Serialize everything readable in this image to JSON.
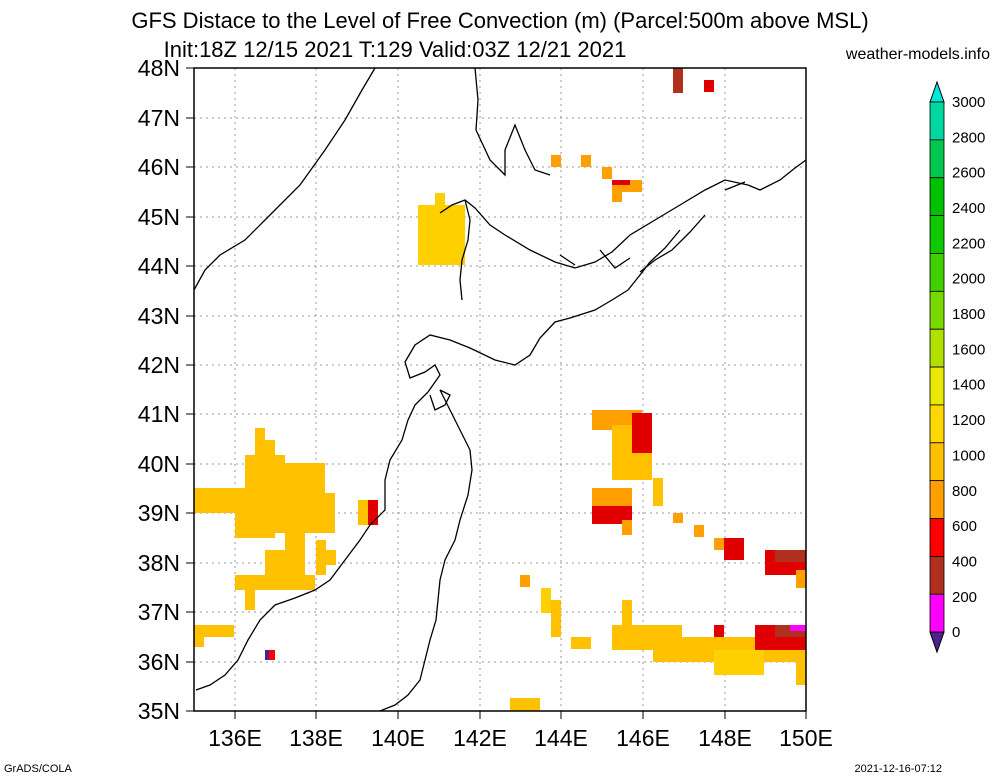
{
  "header": {
    "title_line1": "GFS Distace to the Level of Free Convection (m) (Parcel:500m above MSL)",
    "title_line2": "Init:18Z 12/15 2021 T:129 Valid:03Z 12/21 2021",
    "site": "weather-models.info"
  },
  "footer": {
    "left": "GrADS/COLA",
    "right": "2021-12-16-07:12"
  },
  "axes": {
    "lat_labels": [
      "48N",
      "47N",
      "46N",
      "45N",
      "44N",
      "43N",
      "42N",
      "41N",
      "40N",
      "39N",
      "38N",
      "37N",
      "36N",
      "35N"
    ],
    "lon_labels": [
      "136E",
      "138E",
      "140E",
      "142E",
      "144E",
      "146E",
      "148E",
      "150E"
    ]
  },
  "colorbar": {
    "labels": [
      "3000",
      "2800",
      "2600",
      "2400",
      "2200",
      "2000",
      "1800",
      "1600",
      "1400",
      "1200",
      "1000",
      "800",
      "600",
      "400",
      "200",
      "0"
    ],
    "colors": [
      "#00e8d8",
      "#00d8a0",
      "#00c850",
      "#00c000",
      "#10c800",
      "#40d000",
      "#78d800",
      "#b0e000",
      "#e8e800",
      "#ffd800",
      "#ffc000",
      "#ffa000",
      "#ff0000",
      "#b03020",
      "#ff00ff",
      "#502090"
    ]
  }
}
